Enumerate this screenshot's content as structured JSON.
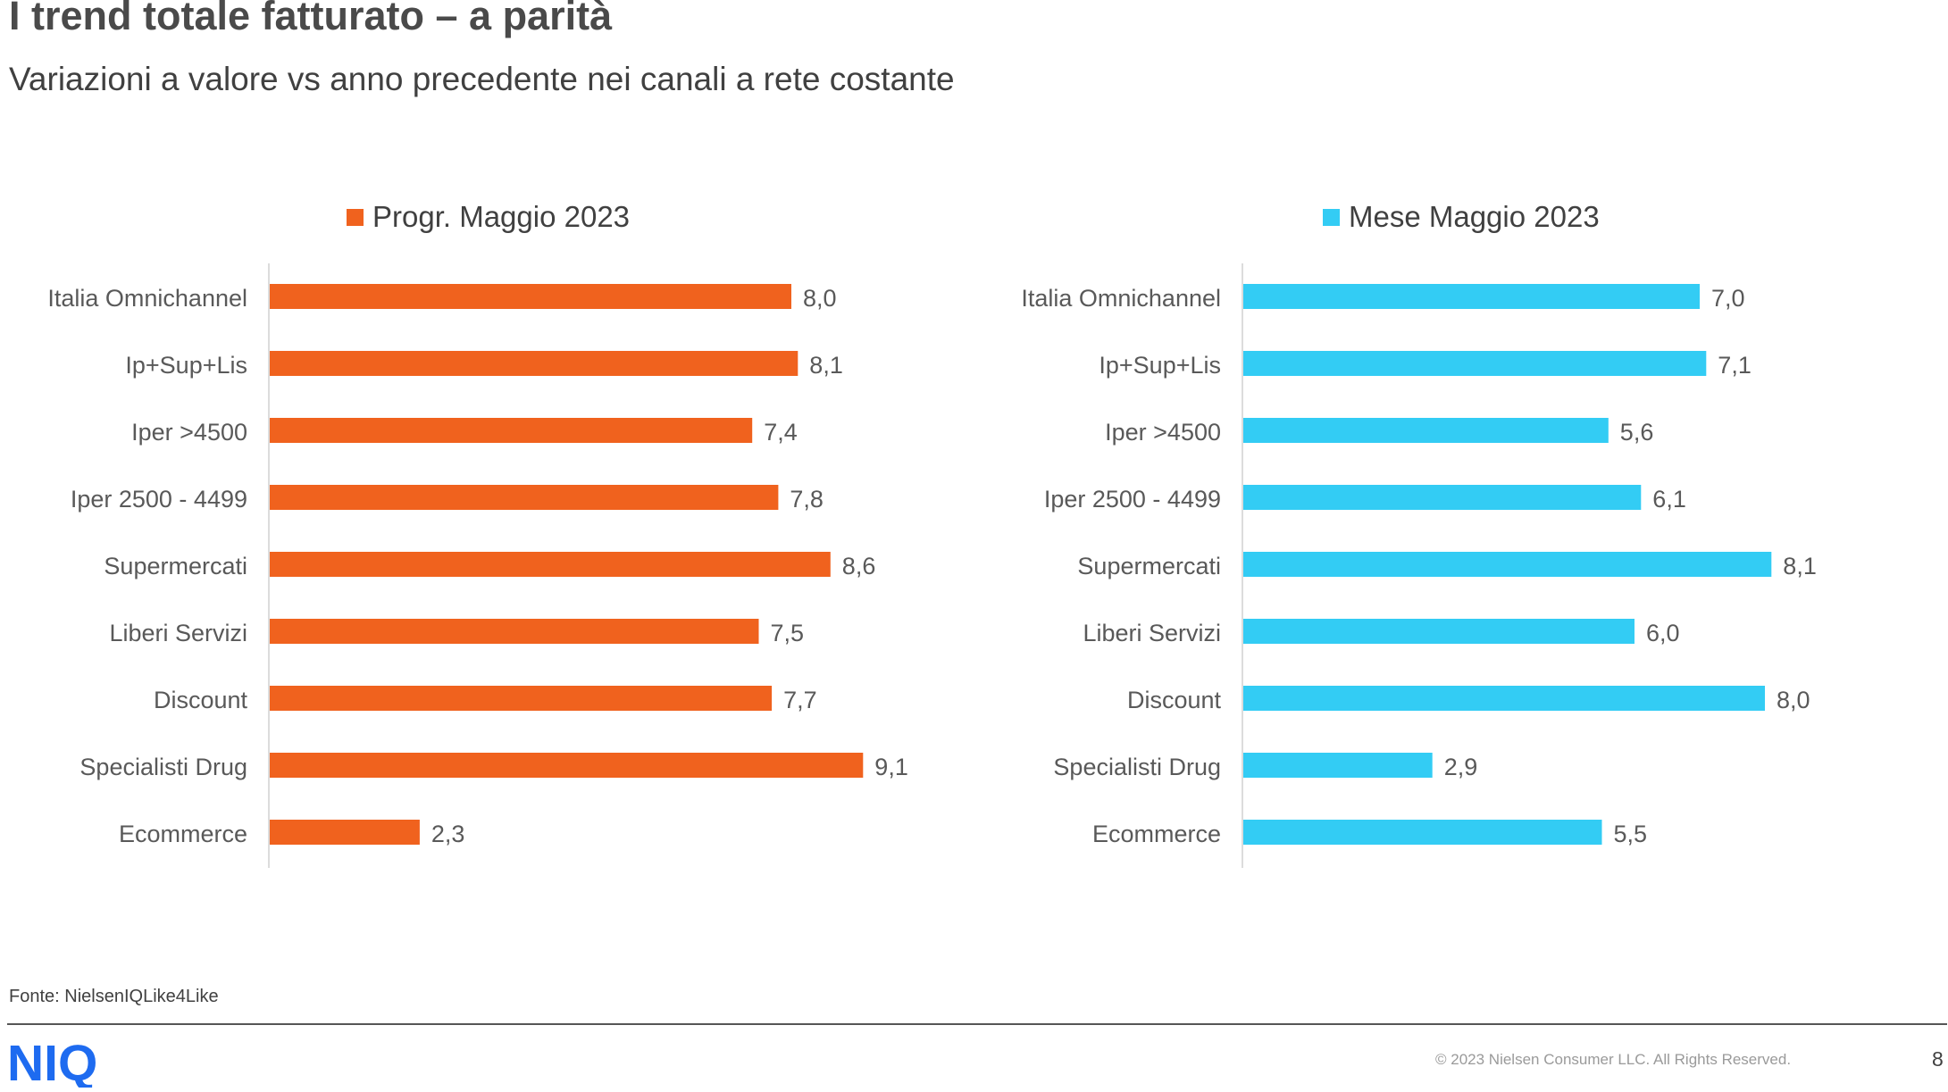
{
  "header": {
    "title": "I trend totale fatturato – a parità",
    "subtitle": "Variazioni a valore vs anno precedente nei canali a rete costante"
  },
  "chart_data": [
    {
      "type": "bar",
      "orientation": "horizontal",
      "legend": "Progr. Maggio 2023",
      "color": "#F0621E",
      "categories": [
        "Italia Omnichannel",
        "Ip+Sup+Lis",
        "Iper >4500",
        "Iper 2500 - 4499",
        "Supermercati",
        "Liberi Servizi",
        "Discount",
        "Specialisti Drug",
        "Ecommerce"
      ],
      "values": [
        8.0,
        8.1,
        7.4,
        7.8,
        8.6,
        7.5,
        7.7,
        9.1,
        2.3
      ],
      "labels": [
        "8,0",
        "8,1",
        "7,4",
        "7,8",
        "8,6",
        "7,5",
        "7,7",
        "9,1",
        "2,3"
      ],
      "xlim": [
        0,
        10
      ]
    },
    {
      "type": "bar",
      "orientation": "horizontal",
      "legend": "Mese Maggio 2023",
      "color": "#33CCF4",
      "categories": [
        "Italia Omnichannel",
        "Ip+Sup+Lis",
        "Iper >4500",
        "Iper 2500 - 4499",
        "Supermercati",
        "Liberi Servizi",
        "Discount",
        "Specialisti Drug",
        "Ecommerce"
      ],
      "values": [
        7.0,
        7.1,
        5.6,
        6.1,
        8.1,
        6.0,
        8.0,
        2.9,
        5.5
      ],
      "labels": [
        "7,0",
        "7,1",
        "5,6",
        "6,1",
        "8,1",
        "6,0",
        "8,0",
        "2,9",
        "5,5"
      ],
      "xlim": [
        0,
        10
      ]
    }
  ],
  "footer": {
    "source": "Fonte: NielsenIQLike4Like",
    "logo_text": "NIQ",
    "copyright": "© 2023 Nielsen Consumer LLC. All Rights Reserved.",
    "page_number": "8"
  },
  "colors": {
    "brand_blue": "#1E6BF0",
    "orange": "#F0621E",
    "cyan": "#33CCF4"
  }
}
